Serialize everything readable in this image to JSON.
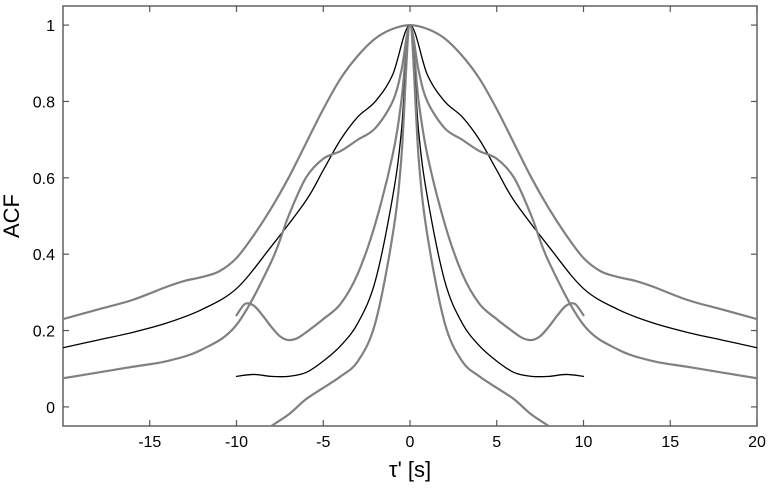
{
  "chart_data": {
    "type": "line",
    "title": "",
    "xlabel": "τ' [s]",
    "ylabel": "ACF",
    "xlim": [
      -20,
      20
    ],
    "ylim": [
      -0.05,
      1.05
    ],
    "xticks": [
      -15,
      -10,
      -5,
      0,
      5,
      10,
      15,
      20
    ],
    "yticks": [
      0,
      0.2,
      0.4,
      0.6,
      0.8,
      1
    ],
    "grid": false,
    "legend": "none",
    "series": [
      {
        "color": "#808080",
        "x": [
          -20,
          -18,
          -16,
          -14,
          -13,
          -12,
          -11,
          -10,
          -9,
          -8,
          -7,
          -6,
          -5,
          -4,
          -3,
          -2,
          -1,
          0,
          1,
          2,
          3,
          4,
          5,
          6,
          7,
          8,
          9,
          10,
          11,
          12,
          13,
          14,
          16,
          18,
          20
        ],
        "y": [
          0.23,
          0.255,
          0.28,
          0.315,
          0.33,
          0.34,
          0.355,
          0.39,
          0.45,
          0.52,
          0.6,
          0.69,
          0.78,
          0.86,
          0.92,
          0.965,
          0.99,
          1,
          0.99,
          0.965,
          0.92,
          0.86,
          0.78,
          0.69,
          0.6,
          0.52,
          0.45,
          0.39,
          0.355,
          0.34,
          0.33,
          0.315,
          0.28,
          0.255,
          0.23
        ]
      },
      {
        "color": "#000000",
        "x": [
          -20,
          -18,
          -16,
          -14,
          -12,
          -10,
          -8,
          -6,
          -5,
          -4,
          -3,
          -2,
          -1,
          0,
          1,
          2,
          3,
          4,
          5,
          6,
          8,
          10,
          12,
          14,
          16,
          18,
          20
        ],
        "y": [
          0.155,
          0.175,
          0.195,
          0.22,
          0.255,
          0.31,
          0.42,
          0.54,
          0.62,
          0.7,
          0.76,
          0.8,
          0.87,
          1,
          0.87,
          0.8,
          0.76,
          0.7,
          0.62,
          0.54,
          0.42,
          0.31,
          0.255,
          0.22,
          0.195,
          0.175,
          0.155
        ]
      },
      {
        "color": "#808080",
        "x": [
          -20,
          -18,
          -16,
          -14,
          -12,
          -10,
          -8,
          -7,
          -6,
          -5,
          -4,
          -3,
          -2,
          -1,
          -0.5,
          0,
          0.5,
          1,
          2,
          3,
          4,
          5,
          6,
          7,
          8,
          10,
          12,
          14,
          16,
          18,
          20
        ],
        "y": [
          0.075,
          0.09,
          0.105,
          0.12,
          0.15,
          0.215,
          0.38,
          0.5,
          0.6,
          0.65,
          0.67,
          0.7,
          0.73,
          0.8,
          0.88,
          1,
          0.88,
          0.8,
          0.73,
          0.7,
          0.67,
          0.65,
          0.6,
          0.5,
          0.38,
          0.215,
          0.15,
          0.12,
          0.105,
          0.09,
          0.075
        ]
      },
      {
        "color": "#808080",
        "x": [
          -10,
          -9.5,
          -9,
          -8.5,
          -8,
          -7.5,
          -7,
          -6.5,
          -6,
          -5,
          -4,
          -3,
          -2,
          -1,
          -0.5,
          0,
          0.5,
          1,
          2,
          3,
          4,
          5,
          6,
          6.5,
          7,
          7.5,
          8,
          8.5,
          9,
          9.5,
          10
        ],
        "y": [
          0.24,
          0.27,
          0.265,
          0.24,
          0.21,
          0.185,
          0.175,
          0.18,
          0.195,
          0.23,
          0.27,
          0.35,
          0.48,
          0.66,
          0.8,
          1,
          0.8,
          0.66,
          0.48,
          0.35,
          0.27,
          0.23,
          0.195,
          0.18,
          0.175,
          0.185,
          0.21,
          0.24,
          0.265,
          0.27,
          0.24
        ]
      },
      {
        "color": "#000000",
        "x": [
          -10,
          -9,
          -8,
          -7,
          -6,
          -5,
          -4,
          -3,
          -2,
          -1,
          -0.5,
          0,
          0.5,
          1,
          2,
          3,
          4,
          5,
          6,
          7,
          8,
          9,
          10
        ],
        "y": [
          0.08,
          0.085,
          0.08,
          0.08,
          0.09,
          0.12,
          0.16,
          0.22,
          0.33,
          0.55,
          0.72,
          1,
          0.72,
          0.55,
          0.33,
          0.22,
          0.16,
          0.12,
          0.09,
          0.08,
          0.08,
          0.085,
          0.08
        ]
      },
      {
        "color": "#808080",
        "x": [
          -8,
          -7,
          -6,
          -5,
          -4,
          -3,
          -2,
          -1,
          -0.5,
          0,
          0.5,
          1,
          2,
          3,
          4,
          5,
          6,
          7,
          8
        ],
        "y": [
          -0.05,
          -0.02,
          0.02,
          0.05,
          0.08,
          0.12,
          0.22,
          0.45,
          0.65,
          1,
          0.65,
          0.45,
          0.22,
          0.12,
          0.08,
          0.05,
          0.02,
          -0.02,
          -0.05
        ]
      }
    ]
  }
}
